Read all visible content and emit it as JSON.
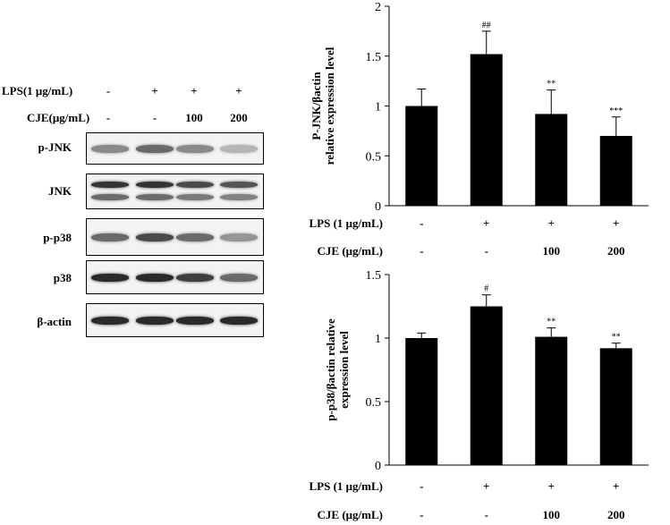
{
  "western_blot": {
    "treatment_rows": [
      {
        "label": "LPS(1 μg/mL)",
        "values": [
          "-",
          "+",
          "+",
          "+"
        ]
      },
      {
        "label": "CJE(μg/mL)",
        "values": [
          "-",
          "-",
          "100",
          "200"
        ]
      }
    ],
    "blots": [
      {
        "label": "p-JNK",
        "intensities": [
          0.45,
          0.6,
          0.45,
          0.25
        ],
        "bands": 1
      },
      {
        "label": "JNK",
        "intensities": [
          0.85,
          0.85,
          0.75,
          0.7
        ],
        "bands": 2
      },
      {
        "label": "p-p38",
        "intensities": [
          0.6,
          0.75,
          0.6,
          0.4
        ],
        "bands": 1
      },
      {
        "label": "p38",
        "intensities": [
          0.9,
          0.9,
          0.8,
          0.6
        ],
        "bands": 1
      },
      {
        "label": "β-actin",
        "intensities": [
          0.9,
          0.9,
          0.9,
          0.9
        ],
        "bands": 1
      }
    ]
  },
  "chart_data": [
    {
      "type": "bar",
      "ylabel_line1": "P-JNK/βactin",
      "ylabel_line2": "relative expression level",
      "categories": [
        "1",
        "2",
        "3",
        "4"
      ],
      "values": [
        1.0,
        1.52,
        0.92,
        0.7
      ],
      "errors": [
        0.17,
        0.23,
        0.24,
        0.19
      ],
      "annotations": [
        "",
        "##",
        "**",
        "***"
      ],
      "ylim": [
        0,
        2
      ],
      "yticks": [
        0,
        0.5,
        1,
        1.5,
        2
      ],
      "ytick_labels": [
        "0",
        "0.5",
        "1",
        "1.5",
        "2"
      ],
      "treatment_rows": [
        {
          "label": "LPS (1 μg/mL)",
          "values": [
            "-",
            "+",
            "+",
            "+"
          ]
        },
        {
          "label": "CJE (μg/mL)",
          "values": [
            "-",
            "-",
            "100",
            "200"
          ]
        }
      ]
    },
    {
      "type": "bar",
      "ylabel_line1": "p-p38/βactin relative",
      "ylabel_line2": "expression level",
      "categories": [
        "1",
        "2",
        "3",
        "4"
      ],
      "values": [
        1.0,
        1.25,
        1.01,
        0.92
      ],
      "errors": [
        0.04,
        0.09,
        0.07,
        0.04
      ],
      "annotations": [
        "",
        "#",
        "**",
        "**"
      ],
      "ylim": [
        0,
        1.5
      ],
      "yticks": [
        0,
        0.5,
        1,
        1.5
      ],
      "ytick_labels": [
        "0",
        "0.5",
        "1",
        "1.5"
      ],
      "treatment_rows": [
        {
          "label": "LPS (1 μg/mL)",
          "values": [
            "-",
            "+",
            "+",
            "+"
          ]
        },
        {
          "label": "CJE (μg/mL)",
          "values": [
            "-",
            "-",
            "100",
            "200"
          ]
        }
      ]
    }
  ]
}
